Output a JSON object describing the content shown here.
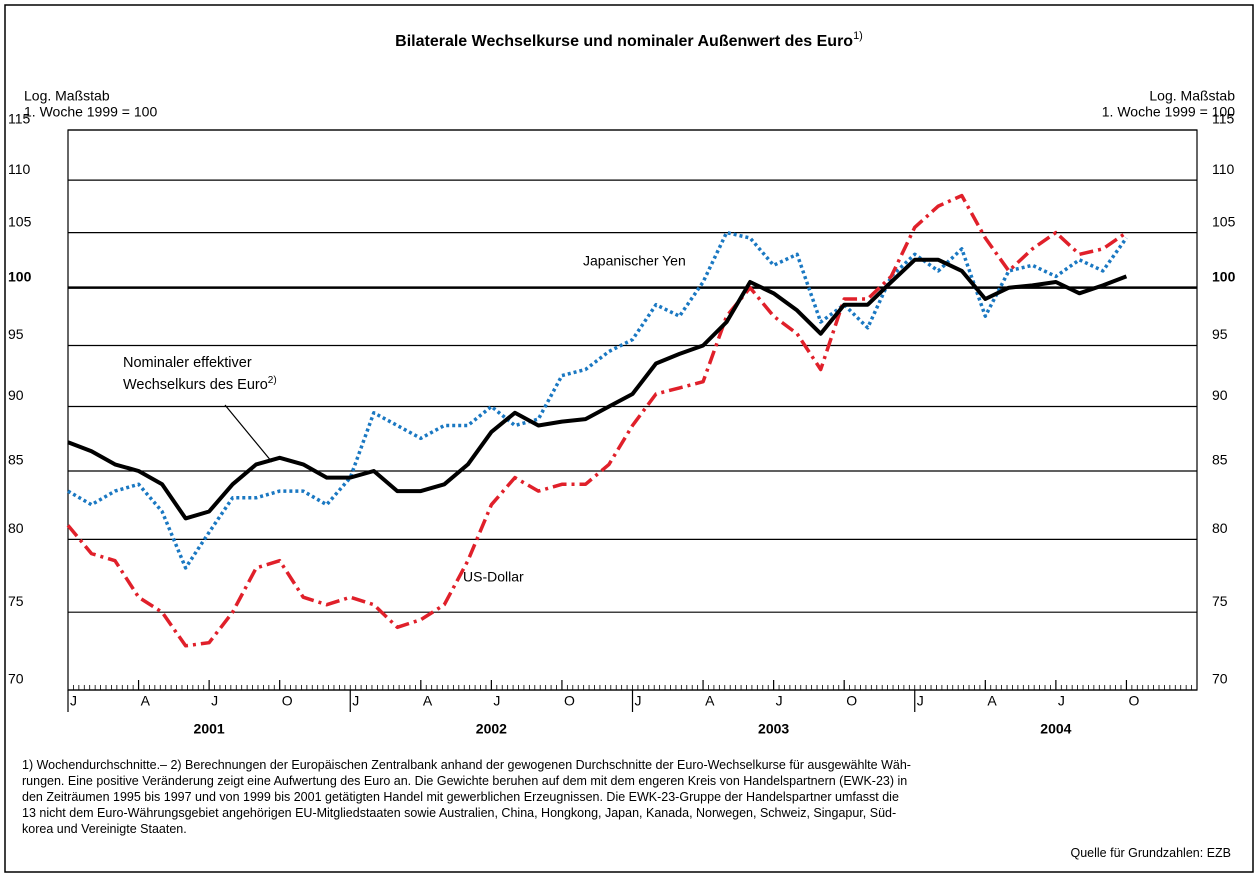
{
  "chart_data": {
    "type": "line",
    "title": "Bilaterale Wechselkurse und nominaler Außenwert des Euro",
    "title_note": "1)",
    "y_axis_label": [
      "Log. Maßstab",
      "1. Woche 1999 = 100"
    ],
    "y2_axis_label": [
      "Log. Maßstab",
      "1. Woche 1999 = 100"
    ],
    "log_scale": true,
    "grid": true,
    "reference_line": 100,
    "ylim": [
      70,
      115
    ],
    "yticks": [
      70,
      75,
      80,
      85,
      90,
      95,
      100,
      105,
      110,
      115
    ],
    "y2lim": [
      70,
      115
    ],
    "y2ticks": [
      70,
      75,
      80,
      85,
      90,
      95,
      100,
      105,
      110,
      115
    ],
    "xlim": [
      "2001-01",
      "2005-01"
    ],
    "xticks": [
      {
        "value": "2001-01",
        "label": "J"
      },
      {
        "value": "2001-04",
        "label": "A"
      },
      {
        "value": "2001-07",
        "label": "J"
      },
      {
        "value": "2001-10",
        "label": "O"
      },
      {
        "value": "2002-01",
        "label": "J"
      },
      {
        "value": "2002-04",
        "label": "A"
      },
      {
        "value": "2002-07",
        "label": "J"
      },
      {
        "value": "2002-10",
        "label": "O"
      },
      {
        "value": "2003-01",
        "label": "J"
      },
      {
        "value": "2003-04",
        "label": "A"
      },
      {
        "value": "2003-07",
        "label": "J"
      },
      {
        "value": "2003-10",
        "label": "O"
      },
      {
        "value": "2004-01",
        "label": "J"
      },
      {
        "value": "2004-04",
        "label": "A"
      },
      {
        "value": "2004-07",
        "label": "J"
      },
      {
        "value": "2004-10",
        "label": "O"
      }
    ],
    "years": [
      "2001",
      "2002",
      "2003",
      "2004"
    ],
    "x": [
      "2001-01",
      "2001-02",
      "2001-03",
      "2001-04",
      "2001-05",
      "2001-06",
      "2001-07",
      "2001-08",
      "2001-09",
      "2001-10",
      "2001-11",
      "2001-12",
      "2002-01",
      "2002-02",
      "2002-03",
      "2002-04",
      "2002-05",
      "2002-06",
      "2002-07",
      "2002-08",
      "2002-09",
      "2002-10",
      "2002-11",
      "2002-12",
      "2003-01",
      "2003-02",
      "2003-03",
      "2003-04",
      "2003-05",
      "2003-06",
      "2003-07",
      "2003-08",
      "2003-09",
      "2003-10",
      "2003-11",
      "2003-12",
      "2004-01",
      "2004-02",
      "2004-03",
      "2004-04",
      "2004-05",
      "2004-06",
      "2004-07",
      "2004-08",
      "2004-09",
      "2004-10"
    ],
    "series": [
      {
        "name": "Nominaler effektiver Wechselkurs des Euro",
        "note": "2)",
        "color": "#000000",
        "style": "solid",
        "values": [
          87.2,
          86.5,
          85.5,
          85.0,
          84.0,
          81.5,
          82.0,
          84.0,
          85.5,
          86.0,
          85.5,
          84.5,
          84.5,
          85.0,
          83.5,
          83.5,
          84.0,
          85.5,
          88.0,
          89.5,
          88.5,
          88.8,
          89.0,
          90.0,
          91.0,
          93.5,
          94.3,
          95.0,
          97.0,
          100.5,
          99.5,
          98.0,
          96.0,
          98.5,
          98.5,
          100.5,
          102.5,
          102.5,
          101.5,
          99.0,
          100.0,
          100.2,
          100.5,
          99.5,
          100.2,
          101.0
        ]
      },
      {
        "name": "US-Dollar",
        "color": "#e0202a",
        "style": "dashdot",
        "values": [
          81.0,
          79.0,
          78.5,
          76.0,
          75.0,
          72.8,
          73.0,
          75.0,
          78.0,
          78.5,
          76.0,
          75.5,
          76.0,
          75.5,
          74.0,
          74.5,
          75.5,
          78.5,
          82.5,
          84.5,
          83.5,
          84.0,
          84.0,
          85.5,
          88.5,
          91.0,
          91.5,
          92.0,
          97.5,
          100.0,
          97.5,
          96.0,
          93.0,
          99.0,
          99.0,
          101.0,
          105.5,
          107.5,
          108.5,
          104.5,
          101.5,
          103.5,
          105.0,
          103.0,
          103.5,
          105.0
        ]
      },
      {
        "name": "Japanischer Yen",
        "color": "#1a78c2",
        "style": "dotted",
        "values": [
          83.5,
          82.5,
          83.5,
          84.0,
          82.0,
          78.0,
          80.5,
          83.0,
          83.0,
          83.5,
          83.5,
          82.5,
          84.5,
          89.5,
          88.5,
          87.5,
          88.5,
          88.5,
          90.0,
          88.5,
          89.0,
          92.5,
          93.0,
          94.5,
          95.5,
          98.5,
          97.5,
          100.5,
          105.0,
          104.5,
          102.0,
          103.0,
          97.0,
          98.5,
          96.5,
          101.0,
          103.0,
          101.5,
          103.5,
          97.5,
          101.5,
          102.0,
          101.0,
          102.5,
          101.5,
          104.5
        ]
      }
    ],
    "footnote": [
      "1) Wochendurchschnitte.– 2) Berechnungen der Europäischen Zentralbank anhand der gewogenen Durchschnitte der Euro-Wechselkurse für ausgewählte Wäh-",
      "rungen. Eine positive Veränderung zeigt eine Aufwertung des Euro an. Die Gewichte beruhen auf dem mit dem engeren Kreis von Handelspartnern (EWK-23) in",
      "den Zeiträumen 1995 bis 1997 und von 1999 bis 2001 getätigten Handel mit gewerblichen Erzeugnissen. Die EWK-23-Gruppe der Handelspartner umfasst die",
      "13 nicht dem Euro-Währungsgebiet angehörigen EU-Mitgliedstaaten sowie Australien, China, Hongkong, Japan, Kanada, Norwegen, Schweiz, Singapur, Süd-",
      "korea und Vereinigte Staaten."
    ],
    "source": "Quelle für Grundzahlen: EZB"
  }
}
